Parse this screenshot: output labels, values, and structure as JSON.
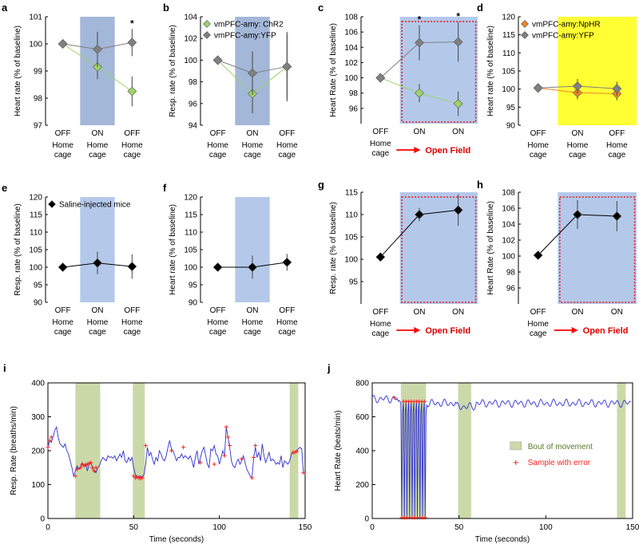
{
  "colors": {
    "stim_blue": "#b4c9ea",
    "stim_blue_dark": "#a3b7d8",
    "stim_yellow": "#ffff33",
    "chr2": "#9ed36a",
    "yfp": "#808080",
    "nphr": "#e8862a",
    "saline": "#000000",
    "movement": "#cbd9a9",
    "trace": "#3030d0",
    "error": "#ff2020",
    "dashed_box": "#e31a1c",
    "arrow": "#ff0000"
  },
  "categories": {
    "a": [
      {
        "s": "OFF",
        "l1": "Home",
        "l2": "cage"
      },
      {
        "s": "ON",
        "l1": "Home",
        "l2": "cage"
      },
      {
        "s": "OFF",
        "l1": "Home",
        "l2": "cage"
      }
    ],
    "c": [
      {
        "s": "OFF"
      },
      {
        "s": "ON"
      },
      {
        "s": "ON"
      }
    ],
    "c_bottom": {
      "left1": "Home",
      "left2": "cage",
      "right": "Open Field"
    }
  },
  "chart_data": [
    {
      "panel": "a",
      "type": "scatter",
      "ylabel": "Heart rate (% of baseline)",
      "ylim": [
        97,
        101
      ],
      "yticks": [
        97,
        98,
        99,
        100,
        101
      ],
      "stim": {
        "from": 0.5,
        "to": 1.5,
        "color": "stim_blue_dark"
      },
      "series": [
        {
          "name": "ChR2",
          "color": "chr2",
          "marker": "diamond",
          "values": [
            100,
            99.15,
            98.25
          ],
          "err": [
            0,
            0.45,
            0.55
          ]
        },
        {
          "name": "YFP",
          "color": "yfp",
          "marker": "diamond",
          "values": [
            100,
            99.8,
            100.05
          ],
          "err": [
            0,
            0.65,
            0.5
          ]
        }
      ],
      "stars": [
        2
      ],
      "categories": "a"
    },
    {
      "panel": "b",
      "type": "scatter",
      "ylabel": "Resp. rate (% of baseline)",
      "ylim": [
        94,
        104
      ],
      "yticks": [
        94,
        96,
        98,
        100,
        102,
        104
      ],
      "stim": {
        "from": 0.5,
        "to": 1.5,
        "color": "stim_blue_dark"
      },
      "legend": [
        {
          "label": "vmPFC-amy: ChR2",
          "color": "chr2"
        },
        {
          "label": "vmPFC-amy:YFP",
          "color": "yfp"
        }
      ],
      "series": [
        {
          "name": "ChR2",
          "color": "chr2",
          "marker": "diamond",
          "values": [
            100,
            96.9,
            99.4
          ],
          "err": [
            0,
            1.8,
            3
          ]
        },
        {
          "name": "YFP",
          "color": "yfp",
          "marker": "diamond",
          "values": [
            100,
            98.8,
            99.4
          ],
          "err": [
            0,
            2,
            3.2
          ]
        }
      ],
      "categories": "a"
    },
    {
      "panel": "c",
      "type": "scatter",
      "ylabel": "Heart Rate (% of baseline)",
      "ylim": [
        94,
        108
      ],
      "yticks": [
        96,
        98,
        100,
        102,
        104,
        106,
        108
      ],
      "stim": {
        "from": 0.5,
        "to": 2.5,
        "color": "stim_blue"
      },
      "box": [
        0.55,
        2.45
      ],
      "series": [
        {
          "name": "ChR2",
          "color": "chr2",
          "marker": "diamond",
          "values": [
            100,
            98,
            96.6
          ],
          "err": [
            0,
            1.2,
            1.6
          ]
        },
        {
          "name": "YFP",
          "color": "yfp",
          "marker": "diamond",
          "values": [
            100,
            104.6,
            104.7
          ],
          "err": [
            0,
            2.3,
            2.6
          ]
        }
      ],
      "stars": [
        1,
        2
      ],
      "categories": "c"
    },
    {
      "panel": "d",
      "type": "scatter",
      "ylabel": "Heart rate (% of baseline)",
      "ylim": [
        90,
        120
      ],
      "yticks": [
        90,
        95,
        100,
        105,
        110,
        115,
        120
      ],
      "stim": {
        "from": 0.5,
        "to": 2.5,
        "color": "stim_yellow"
      },
      "legend": [
        {
          "label": "vmPFC-amy:NpHR",
          "color": "nphr"
        },
        {
          "label": "vmPFC-amy:YFP",
          "color": "yfp"
        }
      ],
      "series": [
        {
          "name": "NpHR",
          "color": "nphr",
          "marker": "diamond",
          "values": [
            100.3,
            99,
            98.7
          ],
          "err": [
            0,
            1.8,
            1.8
          ]
        },
        {
          "name": "YFP",
          "color": "yfp",
          "marker": "diamond",
          "values": [
            100.3,
            100.8,
            100.1
          ],
          "err": [
            0,
            2,
            1.9
          ]
        }
      ],
      "categories": "a"
    },
    {
      "panel": "e",
      "type": "scatter",
      "ylabel": "Resp. rate (% of baseline)",
      "ylim": [
        90,
        120
      ],
      "yticks": [
        90,
        95,
        100,
        105,
        110,
        115,
        120
      ],
      "stim": {
        "from": 0.5,
        "to": 1.5,
        "color": "stim_blue"
      },
      "legend": [
        {
          "label": "Saline-injected mice",
          "color": "saline"
        }
      ],
      "series": [
        {
          "name": "Saline",
          "color": "saline",
          "marker": "diamond",
          "values": [
            100,
            101.2,
            100.2
          ],
          "err": [
            0,
            3.2,
            3.5
          ]
        }
      ],
      "categories": "a"
    },
    {
      "panel": "f",
      "type": "scatter",
      "ylabel": "Heart rate (% of baseline)",
      "ylim": [
        90,
        120
      ],
      "yticks": [
        90,
        95,
        100,
        105,
        110,
        115,
        120
      ],
      "stim": {
        "from": 0.5,
        "to": 1.5,
        "color": "stim_blue"
      },
      "series": [
        {
          "name": "Saline",
          "color": "saline",
          "marker": "diamond",
          "values": [
            100,
            100,
            101.4
          ],
          "err": [
            0,
            3.3,
            2.4
          ]
        }
      ],
      "categories": "a"
    },
    {
      "panel": "g",
      "type": "scatter",
      "ylabel": "Resp. rate (% of baseline)",
      "ylim": [
        90,
        115
      ],
      "yticks": [
        95,
        100,
        105,
        110,
        115
      ],
      "stim": {
        "from": 0.5,
        "to": 2.5,
        "color": "stim_blue"
      },
      "box": [
        0.55,
        2.45
      ],
      "series": [
        {
          "name": "Saline",
          "color": "saline",
          "marker": "diamond",
          "values": [
            100.5,
            110,
            111
          ],
          "err": [
            0,
            1.5,
            3.5
          ]
        }
      ],
      "categories": "c"
    },
    {
      "panel": "h",
      "type": "scatter",
      "ylabel": "Heart Rate (% of baseline)",
      "ylim": [
        94,
        108
      ],
      "yticks": [
        96,
        98,
        100,
        102,
        104,
        106,
        108
      ],
      "stim": {
        "from": 0.5,
        "to": 2.5,
        "color": "stim_blue"
      },
      "box": [
        0.55,
        2.45
      ],
      "series": [
        {
          "name": "Saline",
          "color": "saline",
          "marker": "diamond",
          "values": [
            100.1,
            105.2,
            105
          ],
          "err": [
            0,
            1.8,
            1.9
          ]
        }
      ],
      "categories": "c"
    },
    {
      "panel": "i",
      "type": "line",
      "xlabel": "Time (seconds)",
      "ylabel": "Resp. Rate (breaths/min)",
      "xlim": [
        0,
        150
      ],
      "ylim": [
        0,
        400
      ],
      "xticks": [
        0,
        50,
        100,
        150
      ],
      "yticks": [
        0,
        100,
        200,
        300,
        400
      ],
      "movement": [
        [
          16,
          30.5
        ],
        [
          49.5,
          56.5
        ],
        [
          141,
          146
        ]
      ],
      "trace": [
        [
          0,
          210
        ],
        [
          1,
          230
        ],
        [
          2,
          225
        ],
        [
          3,
          240
        ],
        [
          4,
          260
        ],
        [
          5,
          270
        ],
        [
          6,
          240
        ],
        [
          7,
          220
        ],
        [
          8,
          215
        ],
        [
          9,
          210
        ],
        [
          10,
          220
        ],
        [
          11,
          200
        ],
        [
          12,
          190
        ],
        [
          13,
          170
        ],
        [
          14,
          150
        ],
        [
          15,
          125
        ],
        [
          16,
          140
        ],
        [
          17,
          155
        ],
        [
          18,
          145
        ],
        [
          19,
          150
        ],
        [
          20,
          165
        ],
        [
          21,
          155
        ],
        [
          22,
          162
        ],
        [
          23,
          140
        ],
        [
          24,
          160
        ],
        [
          25,
          165
        ],
        [
          26,
          150
        ],
        [
          27,
          140
        ],
        [
          28,
          135
        ],
        [
          29,
          150
        ],
        [
          30,
          155
        ],
        [
          31,
          170
        ],
        [
          32,
          180
        ],
        [
          33,
          175
        ],
        [
          34,
          170
        ],
        [
          35,
          185
        ],
        [
          36,
          180
        ],
        [
          37,
          182
        ],
        [
          38,
          178
        ],
        [
          39,
          185
        ],
        [
          40,
          170
        ],
        [
          41,
          180
        ],
        [
          42,
          190
        ],
        [
          43,
          180
        ],
        [
          44,
          200
        ],
        [
          45,
          170
        ],
        [
          46,
          165
        ],
        [
          47,
          180
        ],
        [
          48,
          170
        ],
        [
          49,
          180
        ],
        [
          50,
          150
        ],
        [
          51,
          130
        ],
        [
          52,
          120
        ],
        [
          53,
          125
        ],
        [
          54,
          125
        ],
        [
          55,
          120
        ],
        [
          56,
          130
        ],
        [
          57,
          160
        ],
        [
          58,
          210
        ],
        [
          59,
          185
        ],
        [
          60,
          195
        ],
        [
          61,
          175
        ],
        [
          62,
          160
        ],
        [
          63,
          180
        ],
        [
          64,
          170
        ],
        [
          65,
          200
        ],
        [
          66,
          190
        ],
        [
          67,
          175
        ],
        [
          68,
          170
        ],
        [
          69,
          185
        ],
        [
          70,
          210
        ],
        [
          71,
          230
        ],
        [
          72,
          205
        ],
        [
          73,
          200
        ],
        [
          74,
          185
        ],
        [
          75,
          170
        ],
        [
          76,
          180
        ],
        [
          77,
          180
        ],
        [
          78,
          190
        ],
        [
          79,
          178
        ],
        [
          80,
          185
        ],
        [
          81,
          180
        ],
        [
          82,
          175
        ],
        [
          83,
          185
        ],
        [
          84,
          170
        ],
        [
          85,
          150
        ],
        [
          86,
          180
        ],
        [
          87,
          200
        ],
        [
          88,
          160
        ],
        [
          89,
          180
        ],
        [
          90,
          200
        ],
        [
          91,
          210
        ],
        [
          92,
          185
        ],
        [
          93,
          160
        ],
        [
          94,
          150
        ],
        [
          95,
          205
        ],
        [
          96,
          200
        ],
        [
          97,
          215
        ],
        [
          98,
          190
        ],
        [
          99,
          185
        ],
        [
          100,
          160
        ],
        [
          101,
          180
        ],
        [
          102,
          200
        ],
        [
          103,
          185
        ],
        [
          104,
          270
        ],
        [
          105,
          240
        ],
        [
          106,
          210
        ],
        [
          107,
          170
        ],
        [
          108,
          155
        ],
        [
          109,
          150
        ],
        [
          110,
          165
        ],
        [
          111,
          175
        ],
        [
          112,
          160
        ],
        [
          113,
          170
        ],
        [
          114,
          185
        ],
        [
          115,
          165
        ],
        [
          116,
          145
        ],
        [
          117,
          135
        ],
        [
          118,
          125
        ],
        [
          119,
          120
        ],
        [
          120,
          180
        ],
        [
          121,
          210
        ],
        [
          122,
          180
        ],
        [
          123,
          195
        ],
        [
          124,
          170
        ],
        [
          125,
          220
        ],
        [
          126,
          185
        ],
        [
          127,
          165
        ],
        [
          128,
          180
        ],
        [
          129,
          195
        ],
        [
          130,
          170
        ],
        [
          131,
          175
        ],
        [
          132,
          170
        ],
        [
          133,
          160
        ],
        [
          134,
          165
        ],
        [
          135,
          160
        ],
        [
          136,
          185
        ],
        [
          137,
          150
        ],
        [
          138,
          170
        ],
        [
          139,
          165
        ],
        [
          140,
          160
        ],
        [
          141,
          170
        ],
        [
          142,
          190
        ],
        [
          143,
          195
        ],
        [
          144,
          195
        ],
        [
          145,
          198
        ],
        [
          146,
          205
        ],
        [
          147,
          210
        ],
        [
          148,
          205
        ],
        [
          149,
          135
        ]
      ],
      "errors": [
        [
          0,
          210
        ],
        [
          1,
          230
        ],
        [
          2,
          240
        ],
        [
          16,
          125
        ],
        [
          17,
          145
        ],
        [
          19,
          150
        ],
        [
          20,
          160
        ],
        [
          21,
          155
        ],
        [
          22,
          158
        ],
        [
          23,
          160
        ],
        [
          24,
          162
        ],
        [
          25,
          165
        ],
        [
          26,
          150
        ],
        [
          27,
          140
        ],
        [
          28,
          150
        ],
        [
          50,
          125
        ],
        [
          51,
          120
        ],
        [
          52,
          122
        ],
        [
          53,
          120
        ],
        [
          54,
          118
        ],
        [
          55,
          120
        ],
        [
          57,
          215
        ],
        [
          72,
          200
        ],
        [
          79,
          210
        ],
        [
          89,
          165
        ],
        [
          97,
          160
        ],
        [
          103,
          185
        ],
        [
          104,
          270
        ],
        [
          105,
          240
        ],
        [
          106,
          215
        ],
        [
          113,
          175
        ],
        [
          119,
          120
        ],
        [
          120,
          180
        ],
        [
          121,
          215
        ],
        [
          143,
          195
        ],
        [
          144,
          195
        ],
        [
          145,
          198
        ],
        [
          149,
          135
        ]
      ],
      "legend": []
    },
    {
      "panel": "j",
      "type": "line",
      "xlabel": "Time (seconds)",
      "ylabel": "Heart Rate (beats/min)",
      "xlim": [
        0,
        150
      ],
      "ylim": [
        0,
        800
      ],
      "xticks": [
        0,
        50,
        100,
        150
      ],
      "yticks": [
        0,
        200,
        400,
        600,
        800
      ],
      "movement": [
        [
          16.5,
          31
        ],
        [
          49.5,
          57
        ],
        [
          141,
          146
        ]
      ],
      "legend": [
        {
          "label": "Bout of movement",
          "kind": "box"
        },
        {
          "label": "Sample with error",
          "kind": "plus"
        }
      ]
    }
  ]
}
